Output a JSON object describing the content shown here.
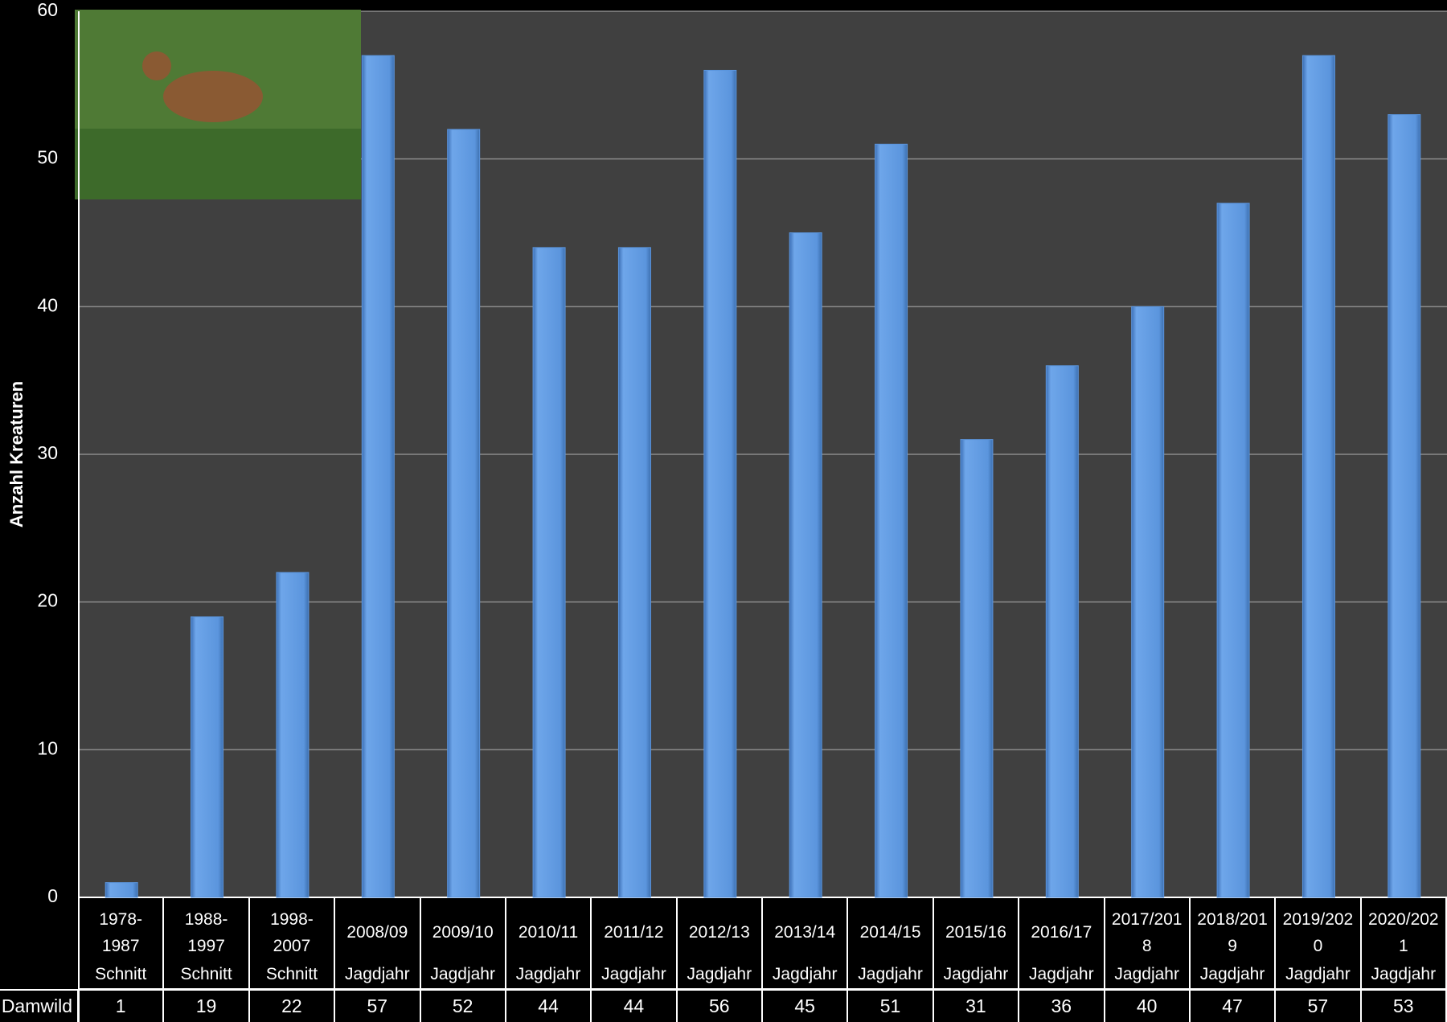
{
  "chart_data": {
    "type": "bar",
    "y_axis_label": "Anzahl Kreaturen",
    "categories": [
      "1978-1987",
      "1988-1997",
      "1998-2007",
      "2008/09",
      "2009/10",
      "2010/11",
      "2011/12",
      "2012/13",
      "2013/14",
      "2014/15",
      "2015/16",
      "2016/17",
      "2017/2018",
      "2018/2019",
      "2019/2020",
      "2020/2021"
    ],
    "category_notes": [
      "Schnitt",
      "Schnitt",
      "Schnitt",
      "Jagdjahr",
      "Jagdjahr",
      "Jagdjahr",
      "Jagdjahr",
      "Jagdjahr",
      "Jagdjahr",
      "Jagdjahr",
      "Jagdjahr",
      "Jagdjahr",
      "Jagdjahr",
      "Jagdjahr",
      "Jagdjahr",
      "Jagdjahr"
    ],
    "series": [
      {
        "name": "Damwild",
        "color": "#5b95dd",
        "values": [
          1,
          19,
          22,
          57,
          52,
          44,
          44,
          56,
          45,
          51,
          31,
          36,
          40,
          47,
          57,
          53
        ]
      }
    ],
    "ylim": [
      0,
      60
    ],
    "yticks": [
      0,
      10,
      20,
      30,
      40,
      50,
      60
    ],
    "grid": true
  }
}
